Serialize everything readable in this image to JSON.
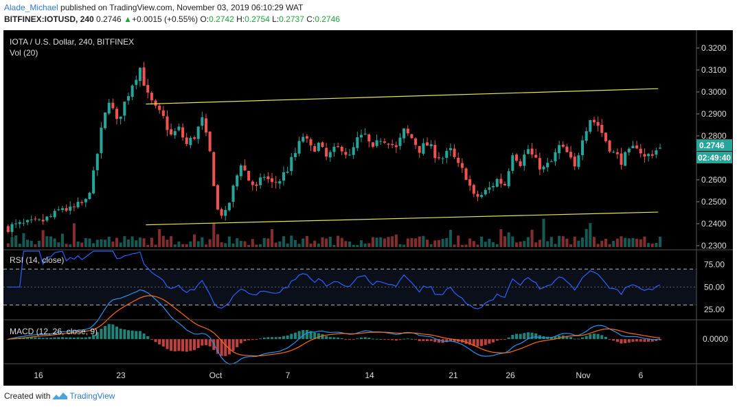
{
  "header": {
    "author": "Alade_Michael",
    "published_text": " published on TradingView.com, November 03, 2019 06:10:29 WAT",
    "symbol": "BITFINEX:IOTUSD, 240",
    "price": "0.2746",
    "change": "+0.0015 (+0.55%)",
    "o_label": "O:",
    "o_value": "0.2742",
    "h_label": "H:",
    "h_value": "0.2754",
    "l_label": "L:",
    "l_value": "0.2737",
    "c_label": "C:",
    "c_value": "0.2746"
  },
  "footer": {
    "created_with": "Created with",
    "brand": "TradingView"
  },
  "colors": {
    "background": "#000000",
    "up": "#26a69a",
    "down": "#ef5350",
    "channel": "#e8e84a",
    "rsi": "#2962ff",
    "macd": "#2196f3",
    "signal": "#ff6d00",
    "price_label_bg": "#26a69a"
  },
  "chart_data": {
    "type": "candlestick",
    "title": "IOTA / U.S. Dollar, 240, BITFINEX",
    "volume_label": "Vol (20)",
    "price_axis": {
      "ticks": [
        "0.3200",
        "0.3100",
        "0.3000",
        "0.2900",
        "0.2800",
        "0.2700",
        "0.2600",
        "0.2500",
        "0.2400",
        "0.2300"
      ],
      "range": [
        0.23,
        0.3225
      ]
    },
    "x_ticks": [
      "16",
      "23",
      "Oct",
      "7",
      "14",
      "21",
      "26",
      "Nov",
      "6"
    ],
    "last_price_label": "0.2746",
    "countdown_label": "02:49:40",
    "close_path": [
      [
        0,
        0.2385
      ],
      [
        8,
        0.2405
      ],
      [
        12,
        0.244
      ],
      [
        14,
        0.2475
      ],
      [
        16,
        0.246
      ],
      [
        20,
        0.25
      ],
      [
        22,
        0.262
      ],
      [
        24,
        0.282
      ],
      [
        26,
        0.297
      ],
      [
        28,
        0.286
      ],
      [
        30,
        0.295
      ],
      [
        32,
        0.304
      ],
      [
        34,
        0.311
      ],
      [
        36,
        0.298
      ],
      [
        38,
        0.292
      ],
      [
        40,
        0.288
      ],
      [
        42,
        0.28
      ],
      [
        44,
        0.283
      ],
      [
        46,
        0.276
      ],
      [
        48,
        0.28
      ],
      [
        50,
        0.287
      ],
      [
        52,
        0.272
      ],
      [
        54,
        0.246
      ],
      [
        56,
        0.244
      ],
      [
        58,
        0.256
      ],
      [
        60,
        0.268
      ],
      [
        62,
        0.26
      ],
      [
        64,
        0.256
      ],
      [
        66,
        0.262
      ],
      [
        68,
        0.258
      ],
      [
        70,
        0.26
      ],
      [
        72,
        0.265
      ],
      [
        74,
        0.272
      ],
      [
        76,
        0.28
      ],
      [
        78,
        0.274
      ],
      [
        80,
        0.276
      ],
      [
        82,
        0.27
      ],
      [
        84,
        0.273
      ],
      [
        86,
        0.275
      ],
      [
        88,
        0.27
      ],
      [
        90,
        0.278
      ],
      [
        92,
        0.28
      ],
      [
        94,
        0.273
      ],
      [
        96,
        0.279
      ],
      [
        98,
        0.278
      ],
      [
        100,
        0.274
      ],
      [
        102,
        0.282
      ],
      [
        104,
        0.279
      ],
      [
        106,
        0.274
      ],
      [
        108,
        0.276
      ],
      [
        110,
        0.272
      ],
      [
        112,
        0.27
      ],
      [
        114,
        0.273
      ],
      [
        116,
        0.266
      ],
      [
        118,
        0.262
      ],
      [
        120,
        0.252
      ],
      [
        122,
        0.253
      ],
      [
        124,
        0.256
      ],
      [
        126,
        0.26
      ],
      [
        128,
        0.258
      ],
      [
        130,
        0.273
      ],
      [
        132,
        0.268
      ],
      [
        134,
        0.274
      ],
      [
        136,
        0.268
      ],
      [
        138,
        0.265
      ],
      [
        140,
        0.268
      ],
      [
        142,
        0.275
      ],
      [
        144,
        0.272
      ],
      [
        146,
        0.265
      ],
      [
        148,
        0.28
      ],
      [
        150,
        0.288
      ],
      [
        152,
        0.285
      ],
      [
        154,
        0.278
      ],
      [
        156,
        0.272
      ],
      [
        158,
        0.269
      ],
      [
        160,
        0.272
      ],
      [
        162,
        0.276
      ],
      [
        164,
        0.27
      ],
      [
        166,
        0.2725
      ],
      [
        168,
        0.2746
      ]
    ],
    "channel": {
      "upper": {
        "from": [
          36,
          0.2945
        ],
        "to": [
          168,
          0.3015
        ]
      },
      "lower": {
        "from": [
          36,
          0.2395
        ],
        "to": [
          168,
          0.2453
        ]
      }
    },
    "rsi": {
      "label": "RSI (14, close)",
      "ticks": [
        "75.00",
        "50.00",
        "25.00"
      ],
      "levels": [
        70,
        30
      ],
      "range": [
        15,
        90
      ]
    },
    "macd": {
      "label": "MACD (12, 26, close, 9)",
      "ticks": [
        "0.0000"
      ],
      "range": [
        -0.0075,
        0.0058
      ]
    }
  }
}
